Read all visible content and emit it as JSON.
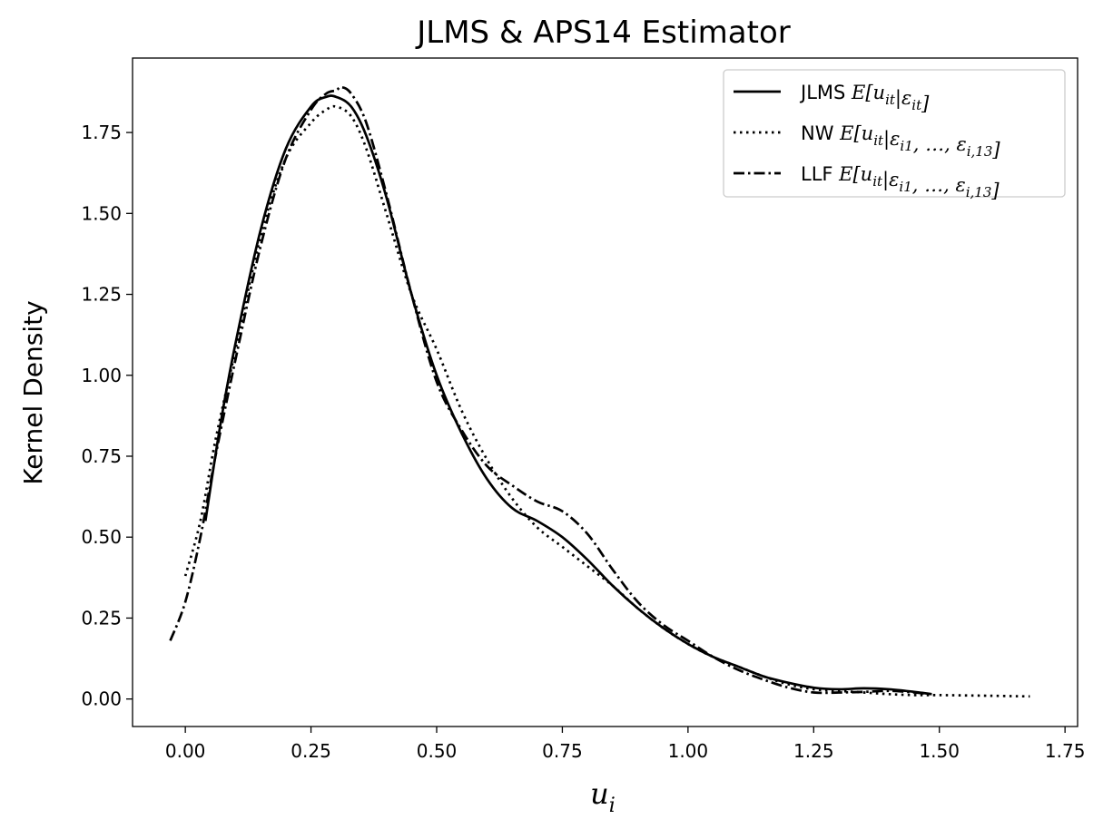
{
  "chart_data": {
    "type": "line",
    "title": "JLMS & APS14 Estimator",
    "ylabel": "Kernel Density",
    "xlabel": {
      "base": "u",
      "sub": "i"
    },
    "xlim": [
      -0.105,
      1.775
    ],
    "ylim": [
      -0.085,
      1.98
    ],
    "xticks": [
      0.0,
      0.25,
      0.5,
      0.75,
      1.0,
      1.25,
      1.5,
      1.75
    ],
    "xtick_labels": [
      "0.00",
      "0.25",
      "0.50",
      "0.75",
      "1.00",
      "1.25",
      "1.50",
      "1.75"
    ],
    "yticks": [
      0.0,
      0.25,
      0.5,
      0.75,
      1.0,
      1.25,
      1.5,
      1.75
    ],
    "ytick_labels": [
      "0.00",
      "0.25",
      "0.50",
      "0.75",
      "1.00",
      "1.25",
      "1.50",
      "1.75"
    ],
    "grid": false,
    "legend_position": "top-right",
    "series": [
      {
        "name": "JLMS E[u_it|ε_it]",
        "legend": {
          "prefix": "JLMS",
          "math": "E[u_{it}|ε_{it}]"
        },
        "style": "solid",
        "color": "#000000",
        "x": [
          0.04,
          0.07,
          0.1,
          0.15,
          0.2,
          0.25,
          0.28,
          0.3,
          0.33,
          0.36,
          0.4,
          0.45,
          0.5,
          0.55,
          0.6,
          0.65,
          0.7,
          0.75,
          0.8,
          0.85,
          0.9,
          0.95,
          1.0,
          1.05,
          1.1,
          1.15,
          1.2,
          1.25,
          1.3,
          1.35,
          1.4,
          1.45,
          1.485
        ],
        "y": [
          0.55,
          0.85,
          1.1,
          1.45,
          1.7,
          1.83,
          1.86,
          1.86,
          1.83,
          1.74,
          1.55,
          1.25,
          1.0,
          0.82,
          0.68,
          0.59,
          0.55,
          0.5,
          0.43,
          0.35,
          0.28,
          0.22,
          0.17,
          0.13,
          0.1,
          0.07,
          0.05,
          0.035,
          0.03,
          0.033,
          0.03,
          0.022,
          0.015
        ]
      },
      {
        "name": "NW E[u_it|ε_i1, …, ε_i,13]",
        "legend": {
          "prefix": "NW",
          "math": "E[u_{it}|ε_{i1}, …, ε_{i,13}]"
        },
        "style": "dotted",
        "color": "#000000",
        "x": [
          0.0,
          0.03,
          0.06,
          0.1,
          0.15,
          0.2,
          0.25,
          0.28,
          0.3,
          0.33,
          0.36,
          0.4,
          0.45,
          0.5,
          0.55,
          0.6,
          0.65,
          0.7,
          0.75,
          0.8,
          0.85,
          0.9,
          0.95,
          1.0,
          1.05,
          1.1,
          1.15,
          1.2,
          1.25,
          1.3,
          1.35,
          1.4,
          1.45,
          1.5,
          1.6,
          1.68
        ],
        "y": [
          0.38,
          0.55,
          0.8,
          1.08,
          1.43,
          1.67,
          1.78,
          1.82,
          1.83,
          1.8,
          1.7,
          1.5,
          1.25,
          1.08,
          0.89,
          0.74,
          0.62,
          0.53,
          0.47,
          0.41,
          0.35,
          0.28,
          0.22,
          0.17,
          0.13,
          0.1,
          0.07,
          0.045,
          0.03,
          0.025,
          0.02,
          0.015,
          0.012,
          0.012,
          0.01,
          0.008
        ]
      },
      {
        "name": "LLF E[u_it|ε_i1, …, ε_i,13]",
        "legend": {
          "prefix": "LLF",
          "math": "E[u_{it}|ε_{i1}, …, ε_{i,13}]"
        },
        "style": "dashdot",
        "color": "#000000",
        "x": [
          -0.03,
          0.0,
          0.03,
          0.06,
          0.1,
          0.15,
          0.2,
          0.25,
          0.28,
          0.3,
          0.31,
          0.33,
          0.36,
          0.4,
          0.45,
          0.5,
          0.55,
          0.6,
          0.65,
          0.7,
          0.75,
          0.8,
          0.85,
          0.9,
          0.95,
          1.0,
          1.05,
          1.1,
          1.15,
          1.2,
          1.25,
          1.3,
          1.35,
          1.4,
          1.45,
          1.48
        ],
        "y": [
          0.18,
          0.3,
          0.5,
          0.75,
          1.05,
          1.4,
          1.67,
          1.82,
          1.87,
          1.88,
          1.89,
          1.87,
          1.78,
          1.56,
          1.25,
          0.98,
          0.83,
          0.72,
          0.66,
          0.61,
          0.58,
          0.51,
          0.4,
          0.3,
          0.23,
          0.18,
          0.13,
          0.09,
          0.06,
          0.035,
          0.02,
          0.02,
          0.022,
          0.025,
          0.02,
          0.015
        ]
      }
    ]
  }
}
